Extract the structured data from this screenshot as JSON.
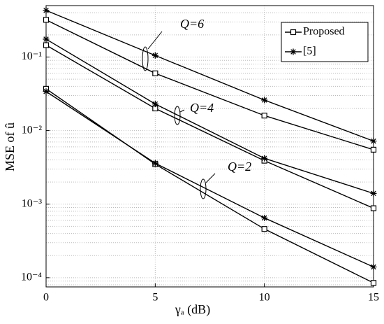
{
  "chart_data": {
    "type": "line",
    "xlabel": "γₐ (dB)",
    "ylabel": "MSE of û",
    "x": [
      0,
      5,
      10,
      15
    ],
    "series": [
      {
        "name": "Proposed",
        "marker": "square",
        "color": "#000000",
        "values": [
          0.32,
          0.06,
          0.016,
          0.0055
        ]
      },
      {
        "name": "[5]",
        "marker": "star",
        "color": "#000000",
        "values": [
          0.43,
          0.105,
          0.026,
          0.0072
        ]
      },
      {
        "name": "Proposed",
        "marker": "square",
        "color": "#000000",
        "values": [
          0.145,
          0.02,
          0.0039,
          0.00088
        ]
      },
      {
        "name": "[5]",
        "marker": "star",
        "color": "#000000",
        "values": [
          0.175,
          0.023,
          0.0042,
          0.0014
        ]
      },
      {
        "name": "Proposed",
        "marker": "square",
        "color": "#000000",
        "values": [
          0.037,
          0.0035,
          0.00046,
          8.5e-05
        ]
      },
      {
        "name": "[5]",
        "marker": "star",
        "color": "#000000",
        "values": [
          0.034,
          0.0036,
          0.00065,
          0.00014
        ]
      }
    ],
    "annotations": [
      "Q=6",
      "Q=4",
      "Q=2"
    ],
    "xlim": [
      0,
      15
    ],
    "xticks": [
      0,
      5,
      10,
      15
    ],
    "ylim": [
      7.5e-05,
      0.5
    ],
    "ylog": true,
    "yticks": [
      {
        "value": 0.0001,
        "label": "10⁻⁴"
      },
      {
        "value": 0.001,
        "label": "10⁻³"
      },
      {
        "value": 0.01,
        "label": "10⁻²"
      },
      {
        "value": 0.1,
        "label": "10⁻¹"
      }
    ],
    "grid": true,
    "legend": "upper right"
  }
}
